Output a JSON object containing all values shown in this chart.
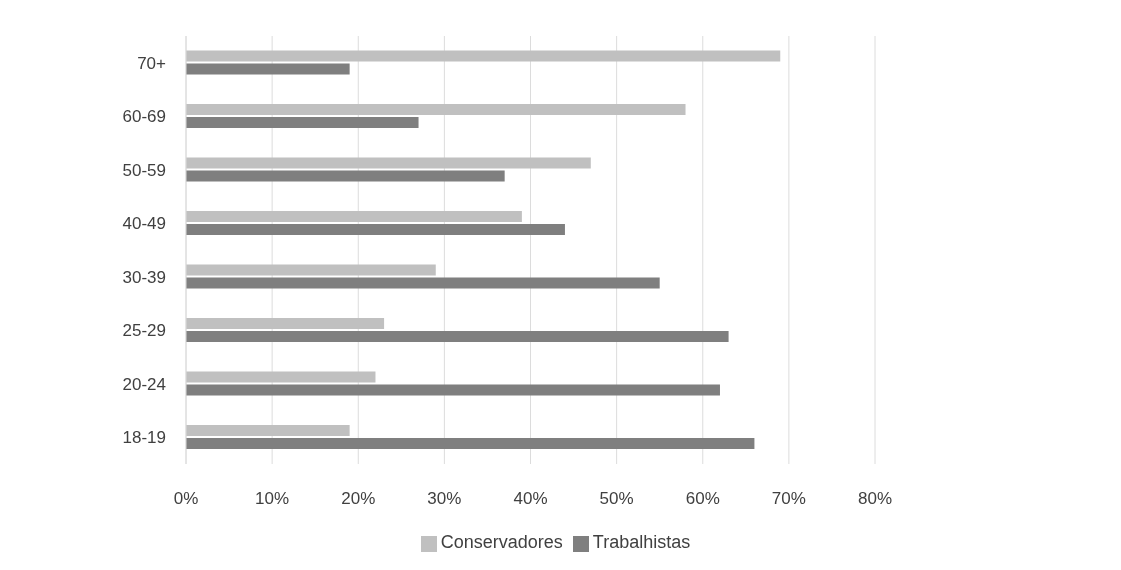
{
  "chart_data": {
    "type": "bar",
    "orientation": "horizontal",
    "categories": [
      "70+",
      "60-69",
      "50-59",
      "40-49",
      "30-39",
      "25-29",
      "20-24",
      "18-19"
    ],
    "series": [
      {
        "name": "Conservadores",
        "color": "#c0c0c0",
        "values": [
          69,
          58,
          47,
          39,
          29,
          23,
          22,
          19
        ]
      },
      {
        "name": "Trabalhistas",
        "color": "#7f7f7f",
        "values": [
          19,
          27,
          37,
          44,
          55,
          63,
          62,
          66
        ]
      }
    ],
    "xlim": [
      0,
      80
    ],
    "xticks": [
      {
        "value": 0,
        "label": "0%"
      },
      {
        "value": 10,
        "label": "10%"
      },
      {
        "value": 20,
        "label": "20%"
      },
      {
        "value": 30,
        "label": "30%"
      },
      {
        "value": 40,
        "label": "40%"
      },
      {
        "value": 50,
        "label": "50%"
      },
      {
        "value": 60,
        "label": "60%"
      },
      {
        "value": 70,
        "label": "70%"
      },
      {
        "value": 80,
        "label": "80%"
      }
    ],
    "grid": "x",
    "legend": "bottom"
  }
}
